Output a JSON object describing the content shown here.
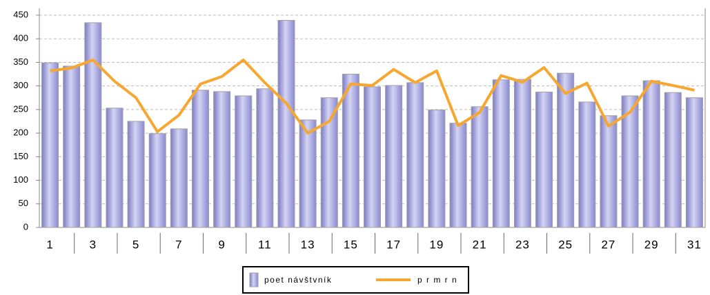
{
  "chart_data": {
    "type": "bar",
    "categories": [
      "1",
      null,
      "3",
      null,
      "5",
      null,
      "7",
      null,
      "9",
      null,
      "11",
      null,
      "13",
      null,
      "15",
      null,
      "17",
      null,
      "19",
      null,
      "21",
      null,
      "23",
      null,
      "25",
      null,
      "27",
      null,
      "29",
      null,
      "31"
    ],
    "series": [
      {
        "name": "poet návštvník",
        "type": "bar",
        "color": "#9c9cd8",
        "values": [
          349,
          342,
          434,
          253,
          225,
          199,
          209,
          291,
          288,
          279,
          294,
          439,
          228,
          275,
          325,
          298,
          301,
          307,
          249,
          221,
          256,
          313,
          314,
          287,
          327,
          266,
          237,
          279,
          311,
          286,
          275
        ]
      },
      {
        "name": "p r m r n",
        "type": "line",
        "color": "#f7a630",
        "values": [
          332,
          338,
          355,
          310,
          275,
          203,
          238,
          304,
          320,
          355,
          307,
          263,
          200,
          225,
          304,
          301,
          335,
          307,
          332,
          216,
          244,
          322,
          308,
          339,
          284,
          306,
          215,
          244,
          310,
          301,
          291
        ]
      }
    ],
    "ylim": [
      0,
      450
    ],
    "yticks": [
      0,
      50,
      100,
      150,
      200,
      250,
      300,
      350,
      400,
      450
    ],
    "grid": true
  }
}
